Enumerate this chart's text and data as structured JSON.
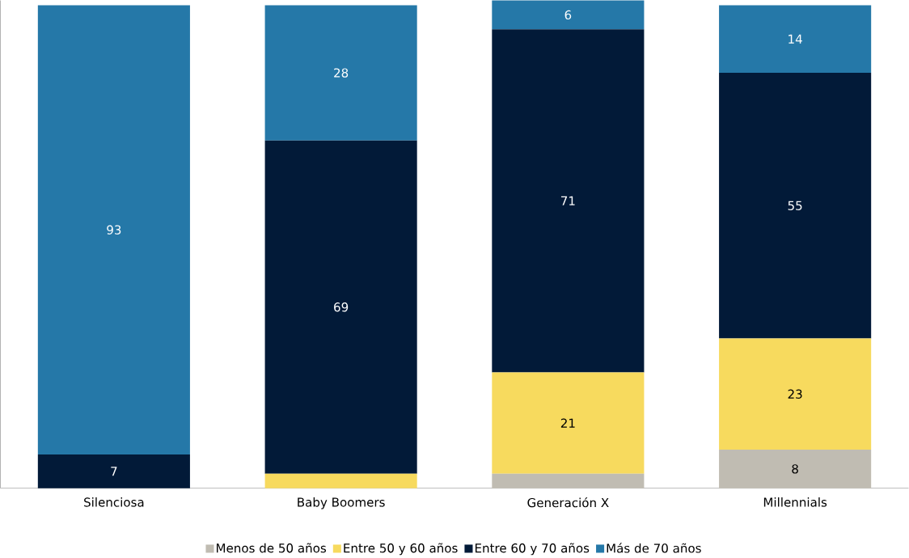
{
  "chart_data": {
    "type": "bar",
    "stacked": true,
    "categories": [
      "Silenciosa",
      "Baby Boomers",
      "Generación X",
      "Millennials"
    ],
    "series": [
      {
        "name": "Menos de 50 años",
        "color": "#c0bcb2",
        "values": [
          0,
          0,
          3,
          8
        ],
        "value_labels": [
          null,
          null,
          null,
          "8"
        ]
      },
      {
        "name": "Entre 50 y 60 años",
        "color": "#f7da5e",
        "values": [
          0,
          3,
          21,
          23
        ],
        "value_labels": [
          null,
          null,
          "21",
          "23"
        ]
      },
      {
        "name": "Entre 60 y 70 años",
        "color": "#021a38",
        "values": [
          7,
          69,
          71,
          55
        ],
        "value_labels": [
          "7",
          "69",
          "71",
          "55"
        ]
      },
      {
        "name": "Más de 70 años",
        "color": "#2578a8",
        "values": [
          93,
          28,
          6,
          14
        ],
        "value_labels": [
          "93",
          "28",
          "6",
          "14"
        ]
      }
    ],
    "tick_labels": "x",
    "legend": "bottom"
  }
}
